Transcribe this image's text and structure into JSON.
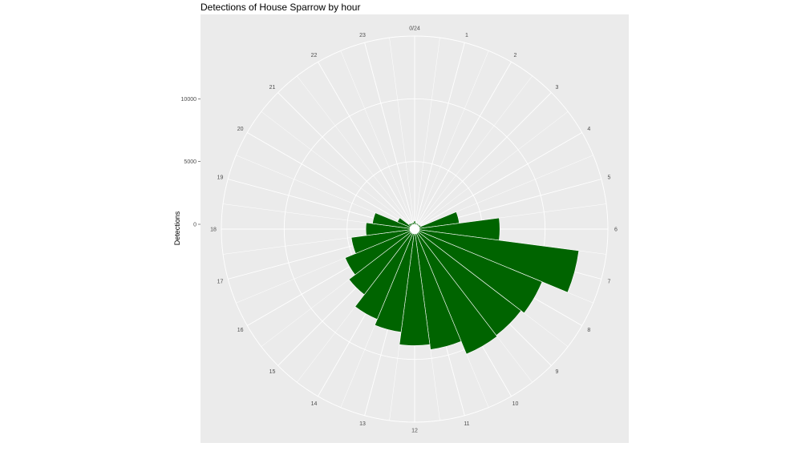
{
  "chart_data": {
    "type": "bar",
    "coord": "polar",
    "title": "Detections of House Sparrow by hour",
    "ylabel": "Detections",
    "xlabel": "",
    "y_ticks": [
      0,
      5000,
      10000
    ],
    "ylim": [
      0,
      15000
    ],
    "hour_labels": [
      "0/24",
      "1",
      "2",
      "3",
      "4",
      "5",
      "6",
      "7",
      "8",
      "9",
      "10",
      "11",
      "12",
      "13",
      "14",
      "15",
      "16",
      "17",
      "18",
      "19",
      "20",
      "21",
      "22",
      "23"
    ],
    "categories": [
      0,
      1,
      2,
      3,
      4,
      5,
      6,
      7,
      8,
      9,
      10,
      11,
      12,
      13,
      14,
      15,
      16,
      17,
      18,
      19,
      20,
      21,
      22,
      23
    ],
    "values": [
      250,
      100,
      100,
      100,
      150,
      3200,
      6400,
      12800,
      10600,
      10300,
      10400,
      9300,
      8900,
      7900,
      7400,
      6200,
      5600,
      4700,
      3500,
      3000,
      1100,
      200,
      150,
      150
    ],
    "bar_color": "#006400",
    "panel_background": "#ebebeb",
    "grid": true,
    "legend": "none"
  }
}
